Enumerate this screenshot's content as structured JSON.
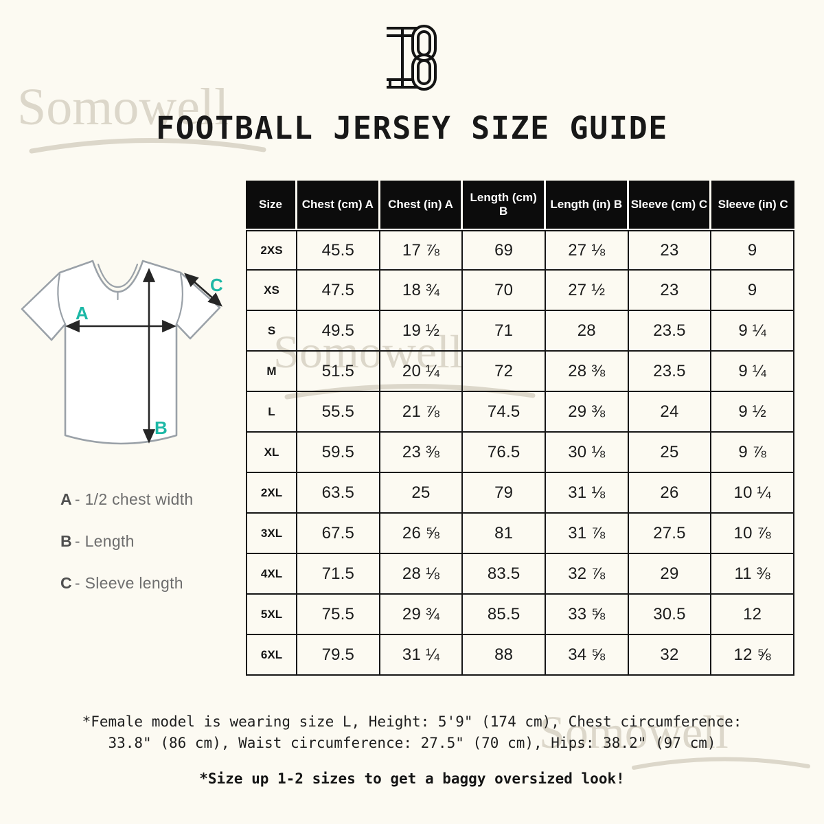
{
  "brand": {
    "logo_monogram": "I8",
    "watermark": "Somowell"
  },
  "title": "FOOTBALL JERSEY SIZE GUIDE",
  "table": {
    "headers": [
      "Size",
      "Chest (cm) A",
      "Chest (in) A",
      "Length (cm) B",
      "Length (in) B",
      "Sleeve (cm) C",
      "Sleeve (in) C"
    ],
    "rows": [
      [
        "2XS",
        "45.5",
        "17 ⅞",
        "69",
        "27 ⅛",
        "23",
        "9"
      ],
      [
        "XS",
        "47.5",
        "18 ¾",
        "70",
        "27 ½",
        "23",
        "9"
      ],
      [
        "S",
        "49.5",
        "19 ½",
        "71",
        "28",
        "23.5",
        "9 ¼"
      ],
      [
        "M",
        "51.5",
        "20 ¼",
        "72",
        "28 ⅜",
        "23.5",
        "9 ¼"
      ],
      [
        "L",
        "55.5",
        "21 ⅞",
        "74.5",
        "29 ⅜",
        "24",
        "9 ½"
      ],
      [
        "XL",
        "59.5",
        "23 ⅜",
        "76.5",
        "30 ⅛",
        "25",
        "9 ⅞"
      ],
      [
        "2XL",
        "63.5",
        "25",
        "79",
        "31 ⅛",
        "26",
        "10 ¼"
      ],
      [
        "3XL",
        "67.5",
        "26 ⅝",
        "81",
        "31 ⅞",
        "27.5",
        "10 ⅞"
      ],
      [
        "4XL",
        "71.5",
        "28 ⅛",
        "83.5",
        "32 ⅞",
        "29",
        "11 ⅜"
      ],
      [
        "5XL",
        "75.5",
        "29 ¾",
        "85.5",
        "33 ⅝",
        "30.5",
        "12"
      ],
      [
        "6XL",
        "79.5",
        "31 ¼",
        "88",
        "34 ⅝",
        "32",
        "12 ⅝"
      ]
    ]
  },
  "diagram": {
    "label_a": "A",
    "label_b": "B",
    "label_c": "C"
  },
  "legend": [
    {
      "key": "A",
      "text": "- 1/2 chest width"
    },
    {
      "key": "B",
      "text": "-  Length"
    },
    {
      "key": "C",
      "text": "- Sleeve length"
    }
  ],
  "notes": {
    "model_line1": "*Female model is wearing size L, Height: 5'9\" (174 cm), Chest circumference:",
    "model_line2": "33.8\" (86 cm), Waist circumference: 27.5\" (70 cm), Hips: 38.2\" (97 cm)",
    "size_up": "*Size up 1-2 sizes to get a baggy oversized look!"
  },
  "colors": {
    "background": "#FCFAF2",
    "header_bg": "#0C0C0C",
    "header_text": "#FFFFFF",
    "grid": "#161616",
    "accent_teal": "#1CB8A6",
    "watermark": "#DCD7CA"
  }
}
